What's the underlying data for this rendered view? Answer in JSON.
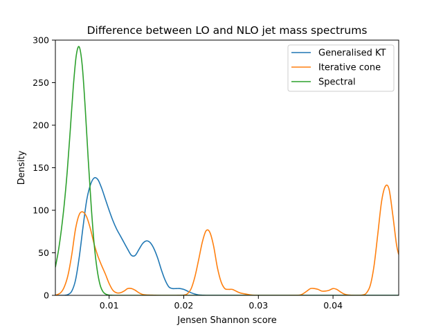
{
  "chart_data": {
    "type": "line",
    "title": "Difference between LO and NLO jet mass spectrums",
    "xlabel": "Jensen Shannon score",
    "ylabel": "Density",
    "xlim": [
      0.0028,
      0.0488
    ],
    "ylim": [
      0,
      300
    ],
    "xticks": [
      {
        "value": 0.01,
        "label": "0.01"
      },
      {
        "value": 0.02,
        "label": "0.02"
      },
      {
        "value": 0.03,
        "label": "0.03"
      },
      {
        "value": 0.04,
        "label": "0.04"
      }
    ],
    "yticks": [
      {
        "value": 0,
        "label": "0"
      },
      {
        "value": 50,
        "label": "50"
      },
      {
        "value": 100,
        "label": "100"
      },
      {
        "value": 150,
        "label": "150"
      },
      {
        "value": 200,
        "label": "200"
      },
      {
        "value": 250,
        "label": "250"
      },
      {
        "value": 300,
        "label": "300"
      }
    ],
    "grid": false,
    "legend_position": "top-right",
    "series": [
      {
        "name": "Generalised KT",
        "color": "#1f77b4",
        "x": [
          0.0028,
          0.0035,
          0.004,
          0.0045,
          0.005,
          0.0055,
          0.006,
          0.0065,
          0.007,
          0.0075,
          0.008,
          0.0085,
          0.009,
          0.0095,
          0.01,
          0.0105,
          0.011,
          0.0115,
          0.012,
          0.0125,
          0.013,
          0.0135,
          0.014,
          0.0145,
          0.015,
          0.0155,
          0.016,
          0.0165,
          0.017,
          0.0175,
          0.018,
          0.0185,
          0.019,
          0.0195,
          0.02,
          0.0205,
          0.021,
          0.0215,
          0.022,
          0.0225,
          0.023,
          0.024,
          0.03,
          0.04,
          0.0488
        ],
        "y": [
          0,
          0,
          0,
          1,
          5,
          18,
          45,
          80,
          112,
          130,
          138,
          136,
          126,
          113,
          100,
          88,
          78,
          70,
          62,
          54,
          47,
          47,
          54,
          61,
          64,
          62,
          55,
          44,
          30,
          18,
          10,
          8,
          8,
          8,
          7,
          5,
          3,
          1.5,
          0.5,
          0.2,
          0,
          0,
          0,
          0,
          0
        ]
      },
      {
        "name": "Iterative cone",
        "color": "#ff7f0e",
        "x": [
          0.0028,
          0.0035,
          0.004,
          0.0045,
          0.005,
          0.0055,
          0.006,
          0.0065,
          0.007,
          0.0075,
          0.008,
          0.0085,
          0.009,
          0.0095,
          0.01,
          0.0105,
          0.011,
          0.0115,
          0.012,
          0.0125,
          0.013,
          0.0135,
          0.014,
          0.0145,
          0.015,
          0.0155,
          0.016,
          0.017,
          0.018,
          0.019,
          0.02,
          0.0205,
          0.021,
          0.0215,
          0.022,
          0.0225,
          0.023,
          0.0235,
          0.024,
          0.0245,
          0.025,
          0.0255,
          0.026,
          0.0265,
          0.027,
          0.0275,
          0.028,
          0.029,
          0.03,
          0.032,
          0.034,
          0.0355,
          0.036,
          0.0365,
          0.037,
          0.0375,
          0.038,
          0.0385,
          0.039,
          0.0395,
          0.04,
          0.0405,
          0.041,
          0.0415,
          0.042,
          0.043,
          0.044,
          0.0445,
          0.045,
          0.0455,
          0.046,
          0.0465,
          0.047,
          0.0475,
          0.048,
          0.0485,
          0.0488
        ],
        "y": [
          0,
          3,
          10,
          24,
          48,
          78,
          95,
          98,
          92,
          78,
          60,
          46,
          35,
          25,
          14,
          6,
          3,
          3,
          5,
          8,
          8,
          6,
          3,
          1,
          0.5,
          0.3,
          0.2,
          0,
          0,
          0,
          0.3,
          2,
          8,
          22,
          42,
          63,
          76,
          74,
          58,
          33,
          16,
          8,
          7,
          7,
          5,
          3,
          2,
          0.5,
          0,
          0,
          0,
          0.3,
          2,
          5,
          8,
          8,
          7,
          5,
          5,
          6,
          8,
          7,
          4,
          1.5,
          0.5,
          0,
          0.5,
          3,
          12,
          35,
          72,
          110,
          128,
          125,
          95,
          60,
          48
        ]
      },
      {
        "name": "Spectral",
        "color": "#2ca02c",
        "x": [
          0.0028,
          0.0032,
          0.0036,
          0.004,
          0.0044,
          0.0048,
          0.0052,
          0.0056,
          0.006,
          0.0064,
          0.0068,
          0.0072,
          0.0076,
          0.008,
          0.0084,
          0.0088,
          0.0092,
          0.0096,
          0.01,
          0.0104,
          0.011,
          0.012,
          0.02,
          0.03,
          0.04,
          0.0488
        ],
        "y": [
          33,
          52,
          77,
          108,
          147,
          195,
          245,
          282,
          292,
          270,
          220,
          160,
          105,
          60,
          30,
          12,
          4,
          1.2,
          0.3,
          0.1,
          0,
          0,
          0,
          0,
          0,
          0
        ]
      }
    ]
  }
}
